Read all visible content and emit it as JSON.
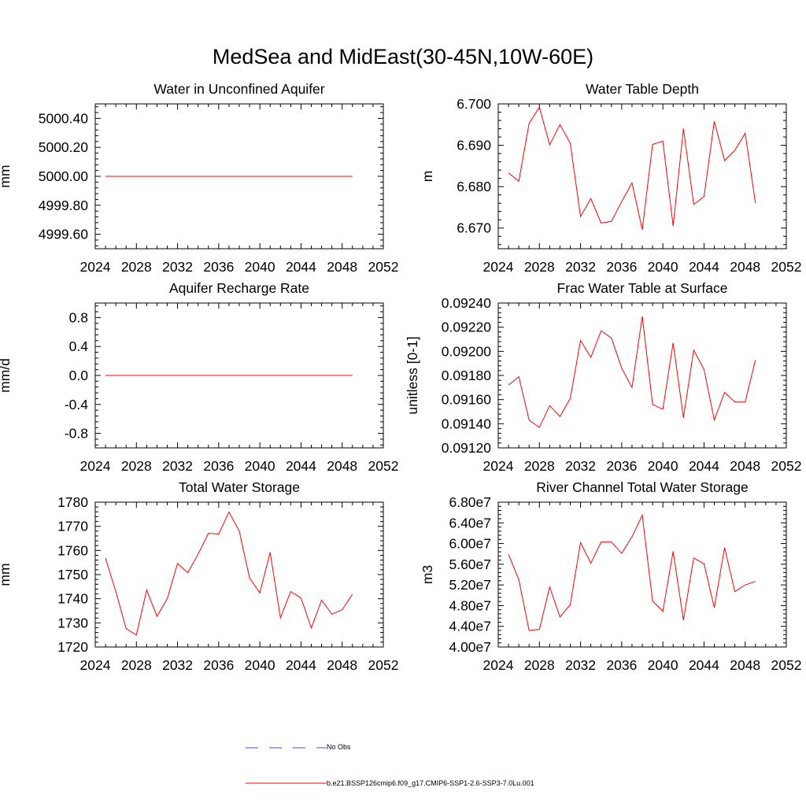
{
  "title": "MedSea and MidEast(30-45N,10W-60E)",
  "colors": {
    "model": "#ff0000",
    "obs": "#4b4bff",
    "axis": "#000000"
  },
  "legend": {
    "obs_label": "No Obs",
    "model_label": "b.e21.BSSP126cmip6.f09_g17.CMIP6-SSP1-2.6-SSP3-7.0Lu.001"
  },
  "chart_data": [
    {
      "type": "line",
      "title": "Water in Unconfined Aquifer",
      "ylabel": "mm",
      "xlim": [
        2024,
        2052
      ],
      "ylim": [
        4999.5,
        5000.5
      ],
      "xticks": [
        2024,
        2028,
        2032,
        2036,
        2040,
        2044,
        2048,
        2052
      ],
      "yticks": [
        4999.6,
        4999.8,
        5000.0,
        5000.2,
        5000.4
      ],
      "ytick_labels": [
        "4999.60",
        "4999.80",
        "5000.00",
        "5000.20",
        "5000.40"
      ],
      "x": [
        2025,
        2026,
        2027,
        2028,
        2029,
        2030,
        2031,
        2032,
        2033,
        2034,
        2035,
        2036,
        2037,
        2038,
        2039,
        2040,
        2041,
        2042,
        2043,
        2044,
        2045,
        2046,
        2047,
        2048,
        2049
      ],
      "series": [
        {
          "values": [
            5000.0,
            5000.0,
            5000.0,
            5000.0,
            5000.0,
            5000.0,
            5000.0,
            5000.0,
            5000.0,
            5000.0,
            5000.0,
            5000.0,
            5000.0,
            5000.0,
            5000.0,
            5000.0,
            5000.0,
            5000.0,
            5000.0,
            5000.0,
            5000.0,
            5000.0,
            5000.0,
            5000.0,
            5000.0
          ]
        }
      ]
    },
    {
      "type": "line",
      "title": "Water Table Depth",
      "ylabel": "m",
      "xlim": [
        2024,
        2052
      ],
      "ylim": [
        6.665,
        6.7
      ],
      "xticks": [
        2024,
        2028,
        2032,
        2036,
        2040,
        2044,
        2048,
        2052
      ],
      "yticks": [
        6.67,
        6.68,
        6.69,
        6.7
      ],
      "ytick_labels": [
        "6.670",
        "6.680",
        "6.690",
        "6.700"
      ],
      "x": [
        2025,
        2026,
        2027,
        2028,
        2029,
        2030,
        2031,
        2032,
        2033,
        2034,
        2035,
        2036,
        2037,
        2038,
        2039,
        2040,
        2041,
        2042,
        2043,
        2044,
        2045,
        2046,
        2047,
        2048,
        2049
      ],
      "series": [
        {
          "values": [
            6.6833,
            6.6813,
            6.6953,
            6.6992,
            6.6901,
            6.695,
            6.6905,
            6.6728,
            6.6771,
            6.6712,
            6.6716,
            6.6764,
            6.6809,
            6.6696,
            6.6902,
            6.691,
            6.6705,
            6.694,
            6.6757,
            6.6776,
            6.6958,
            6.6863,
            6.6888,
            6.6929,
            6.676
          ]
        }
      ]
    },
    {
      "type": "line",
      "title": "Aquifer Recharge Rate",
      "ylabel": "mm/d",
      "xlim": [
        2024,
        2052
      ],
      "ylim": [
        -1.0,
        1.0
      ],
      "xticks": [
        2024,
        2028,
        2032,
        2036,
        2040,
        2044,
        2048,
        2052
      ],
      "yticks": [
        -0.8,
        -0.4,
        0.0,
        0.4,
        0.8
      ],
      "ytick_labels": [
        "-0.8",
        "-0.4",
        "0.0",
        "0.4",
        "0.8"
      ],
      "x": [
        2025,
        2026,
        2027,
        2028,
        2029,
        2030,
        2031,
        2032,
        2033,
        2034,
        2035,
        2036,
        2037,
        2038,
        2039,
        2040,
        2041,
        2042,
        2043,
        2044,
        2045,
        2046,
        2047,
        2048,
        2049
      ],
      "series": [
        {
          "values": [
            0,
            0,
            0,
            0,
            0,
            0,
            0,
            0,
            0,
            0,
            0,
            0,
            0,
            0,
            0,
            0,
            0,
            0,
            0,
            0,
            0,
            0,
            0,
            0,
            0
          ]
        }
      ]
    },
    {
      "type": "line",
      "title": "Frac Water Table at Surface",
      "ylabel": "unitless [0-1]",
      "xlim": [
        2024,
        2052
      ],
      "ylim": [
        0.0912,
        0.0924
      ],
      "xticks": [
        2024,
        2028,
        2032,
        2036,
        2040,
        2044,
        2048,
        2052
      ],
      "yticks": [
        0.0912,
        0.0914,
        0.0916,
        0.0918,
        0.092,
        0.0922,
        0.0924
      ],
      "ytick_labels": [
        "0.09120",
        "0.09140",
        "0.09160",
        "0.09180",
        "0.09200",
        "0.09220",
        "0.09240"
      ],
      "x": [
        2025,
        2026,
        2027,
        2028,
        2029,
        2030,
        2031,
        2032,
        2033,
        2034,
        2035,
        2036,
        2037,
        2038,
        2039,
        2040,
        2041,
        2042,
        2043,
        2044,
        2045,
        2046,
        2047,
        2048,
        2049
      ],
      "series": [
        {
          "values": [
            0.09172,
            0.09179,
            0.09143,
            0.09137,
            0.09155,
            0.09146,
            0.09161,
            0.09209,
            0.09195,
            0.09217,
            0.09211,
            0.09186,
            0.0917,
            0.09229,
            0.09156,
            0.09152,
            0.09207,
            0.09145,
            0.09201,
            0.09185,
            0.09143,
            0.09166,
            0.09158,
            0.09158,
            0.09193
          ]
        }
      ]
    },
    {
      "type": "line",
      "title": "Total Water Storage",
      "ylabel": "mm",
      "xlim": [
        2024,
        2052
      ],
      "ylim": [
        1720,
        1780
      ],
      "xticks": [
        2024,
        2028,
        2032,
        2036,
        2040,
        2044,
        2048,
        2052
      ],
      "yticks": [
        1720,
        1730,
        1740,
        1750,
        1760,
        1770,
        1780
      ],
      "ytick_labels": [
        "1720",
        "1730",
        "1740",
        "1750",
        "1760",
        "1770",
        "1780"
      ],
      "x": [
        2025,
        2026,
        2027,
        2028,
        2029,
        2030,
        2031,
        2032,
        2033,
        2034,
        2035,
        2036,
        2037,
        2038,
        2039,
        2040,
        2041,
        2042,
        2043,
        2044,
        2045,
        2046,
        2047,
        2048,
        2049
      ],
      "series": [
        {
          "values": [
            1756.8,
            1743.0,
            1727.6,
            1725.0,
            1743.6,
            1732.7,
            1740.0,
            1754.6,
            1750.8,
            1758.5,
            1767.1,
            1766.8,
            1775.9,
            1768.0,
            1748.6,
            1742.4,
            1759.2,
            1732.1,
            1743.0,
            1740.3,
            1727.9,
            1739.4,
            1733.6,
            1735.4,
            1741.9
          ]
        }
      ]
    },
    {
      "type": "line",
      "title": "River Channel Total Water Storage",
      "ylabel": "m3",
      "xlim": [
        2024,
        2052
      ],
      "ylim": [
        40000000,
        68000000
      ],
      "xticks": [
        2024,
        2028,
        2032,
        2036,
        2040,
        2044,
        2048,
        2052
      ],
      "yticks": [
        40000000,
        44000000,
        48000000,
        52000000,
        56000000,
        60000000,
        64000000,
        68000000
      ],
      "ytick_labels": [
        "4.00e7",
        "4.40e7",
        "4.80e7",
        "5.20e7",
        "5.60e7",
        "6.00e7",
        "6.40e7",
        "6.80e7"
      ],
      "x": [
        2025,
        2026,
        2027,
        2028,
        2029,
        2030,
        2031,
        2032,
        2033,
        2034,
        2035,
        2036,
        2037,
        2038,
        2039,
        2040,
        2041,
        2042,
        2043,
        2044,
        2045,
        2046,
        2047,
        2048,
        2049
      ],
      "series": [
        {
          "values": [
            57900000,
            53000000,
            43200000,
            43400000,
            51600000,
            45800000,
            48200000,
            60200000,
            56200000,
            60300000,
            60300000,
            58100000,
            61300000,
            65500000,
            48900000,
            46900000,
            58500000,
            45200000,
            57200000,
            56100000,
            47600000,
            59200000,
            50700000,
            52000000,
            52700000
          ]
        }
      ]
    }
  ]
}
